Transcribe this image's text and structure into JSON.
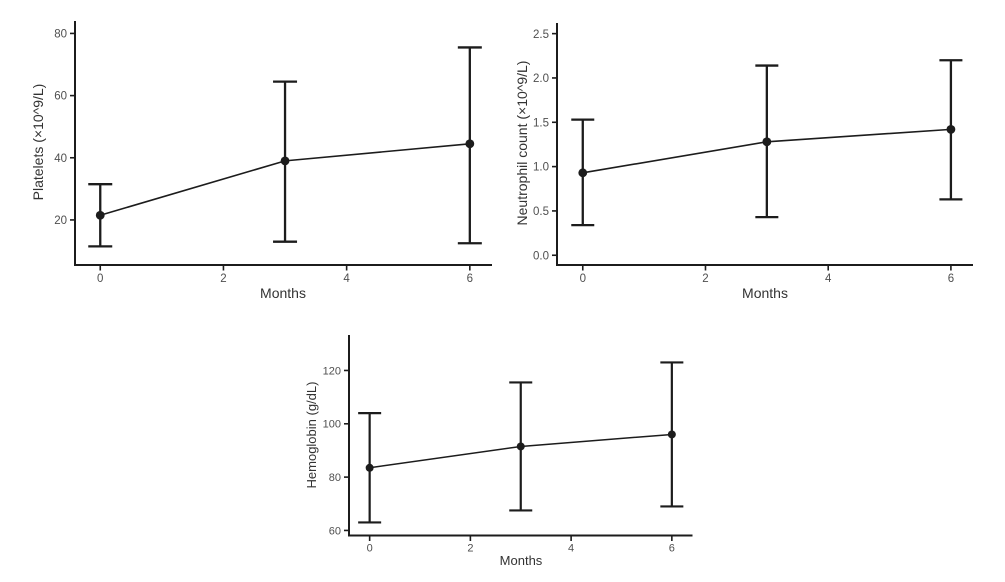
{
  "page": {
    "background": "#ffffff"
  },
  "style": {
    "ink_color": "#1c1c1c",
    "tick_label_color": "#4f4f4f",
    "axis_title_color": "#333333"
  },
  "chart_data": [
    {
      "id": "platelets",
      "type": "line",
      "title": "",
      "xlabel": "Months",
      "ylabel": "Platelets (×10^9/L)",
      "x": [
        0,
        3,
        6
      ],
      "series": [
        {
          "name": "Platelets",
          "values": [
            21.5,
            39,
            44.5
          ],
          "err_low": [
            11.5,
            13,
            12.5
          ],
          "err_high": [
            31.5,
            64.5,
            75.5
          ]
        }
      ],
      "xtick_values": [
        0,
        2,
        4,
        6
      ],
      "xtick_labels": [
        "0",
        "2",
        "4",
        "6"
      ],
      "ytick_values": [
        20,
        40,
        60,
        80
      ],
      "ytick_labels": [
        "20",
        "40",
        "60",
        "80"
      ],
      "xlim": [
        -0.41,
        6.36
      ],
      "ylim": [
        5.5,
        84.0
      ],
      "grid": false,
      "legend": "none",
      "error_bars": true
    },
    {
      "id": "neutrophil-count",
      "type": "line",
      "title": "",
      "xlabel": "Months",
      "ylabel": "Neutrophil count (×10^9/L)",
      "x": [
        0,
        3,
        6
      ],
      "series": [
        {
          "name": "Neutrophil count",
          "values": [
            0.93,
            1.28,
            1.42
          ],
          "err_low": [
            0.34,
            0.43,
            0.63
          ],
          "err_high": [
            1.53,
            2.14,
            2.2
          ]
        }
      ],
      "xtick_values": [
        0,
        2,
        4,
        6
      ],
      "xtick_labels": [
        "0",
        "2",
        "4",
        "6"
      ],
      "ytick_values": [
        0,
        0.5,
        1,
        1.5,
        2,
        2.5
      ],
      "ytick_labels": [
        "0.0",
        "0.5",
        "1.0",
        "1.5",
        "2.0",
        "2.5"
      ],
      "xlim": [
        -0.42,
        6.36
      ],
      "ylim": [
        -0.11,
        2.62
      ],
      "grid": false,
      "legend": "none",
      "error_bars": true
    },
    {
      "id": "hemoglobin",
      "type": "line",
      "title": "",
      "xlabel": "Months",
      "ylabel": "Hemoglobin (g/dL)",
      "x": [
        0,
        3,
        6
      ],
      "series": [
        {
          "name": "Hemoglobin",
          "values": [
            83.5,
            91.5,
            96
          ],
          "err_low": [
            63,
            67.5,
            69
          ],
          "err_high": [
            104,
            115.5,
            123
          ]
        }
      ],
      "xtick_values": [
        0,
        2,
        4,
        6
      ],
      "xtick_labels": [
        "0",
        "2",
        "4",
        "6"
      ],
      "ytick_values": [
        60,
        80,
        100,
        120
      ],
      "ytick_labels": [
        "60",
        "80",
        "100",
        "120"
      ],
      "xlim": [
        -0.41,
        6.41
      ],
      "ylim": [
        58.1,
        133.3
      ],
      "grid": false,
      "legend": "none",
      "error_bars": true
    }
  ]
}
